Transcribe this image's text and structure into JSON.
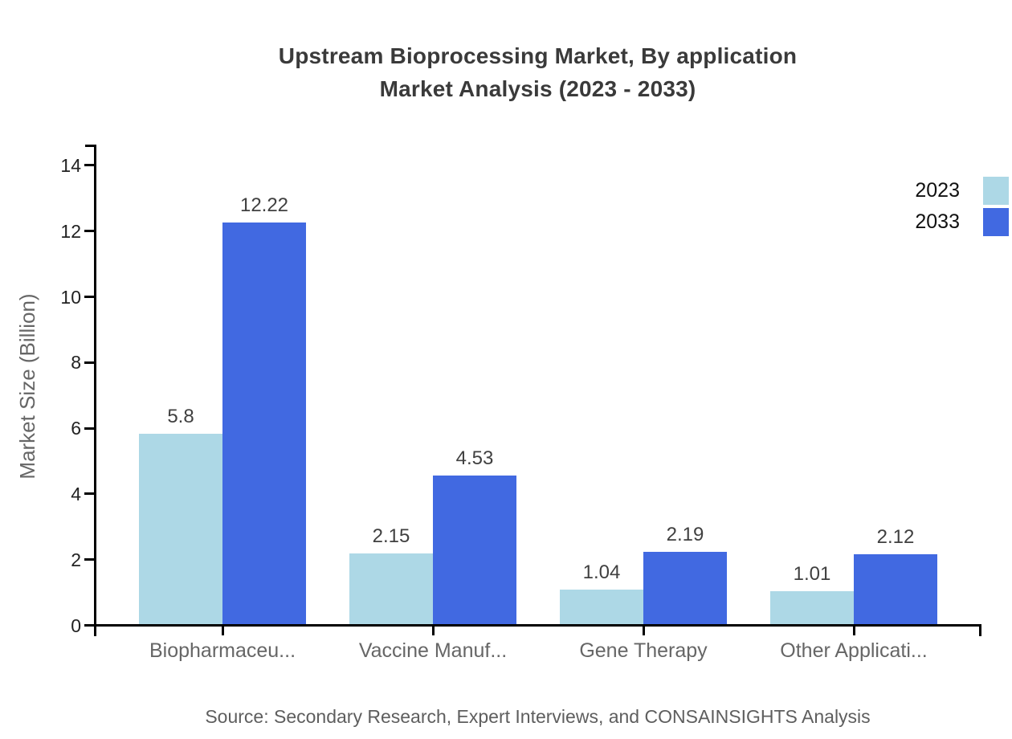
{
  "title": {
    "line1": "Upstream Bioprocessing Market, By application",
    "line2": "Market Analysis (2023 - 2033)"
  },
  "legend": [
    {
      "label": "2023",
      "color": "#ADD8E6"
    },
    {
      "label": "2033",
      "color": "#4169E1"
    }
  ],
  "source": "Source: Secondary Research, Expert Interviews, and CONSAINSIGHTS Analysis",
  "colors": {
    "series_2023": "#ADD8E6",
    "series_2033": "#4169E1",
    "axis": "#000000",
    "title_text": "#3a3a3a",
    "axis_text": "#222222",
    "category_text": "#666666",
    "value_label_text": "#404040",
    "source_text": "#5e5e5e"
  },
  "chart_data": {
    "type": "bar",
    "title": "Upstream Bioprocessing Market, By application Market Analysis (2023 - 2033)",
    "categories": [
      "Biopharmaceu...",
      "Vaccine Manuf...",
      "Gene Therapy",
      "Other Applicati..."
    ],
    "series": [
      {
        "name": "2023",
        "color": "#ADD8E6",
        "values": [
          5.8,
          2.15,
          1.04,
          1.01
        ],
        "labels": [
          "5.8",
          "2.15",
          "1.04",
          "1.01"
        ]
      },
      {
        "name": "2033",
        "color": "#4169E1",
        "values": [
          12.22,
          4.53,
          2.19,
          2.12
        ],
        "labels": [
          "12.22",
          "4.53",
          "2.19",
          "2.12"
        ]
      }
    ],
    "xlabel": "",
    "ylabel": "Market Size (Billion)",
    "yticks": [
      0,
      2,
      4,
      6,
      8,
      10,
      12,
      14
    ],
    "ylim": [
      0,
      14.6
    ],
    "grid": false,
    "legend_position": "top-right",
    "bar_value_labels": true
  }
}
